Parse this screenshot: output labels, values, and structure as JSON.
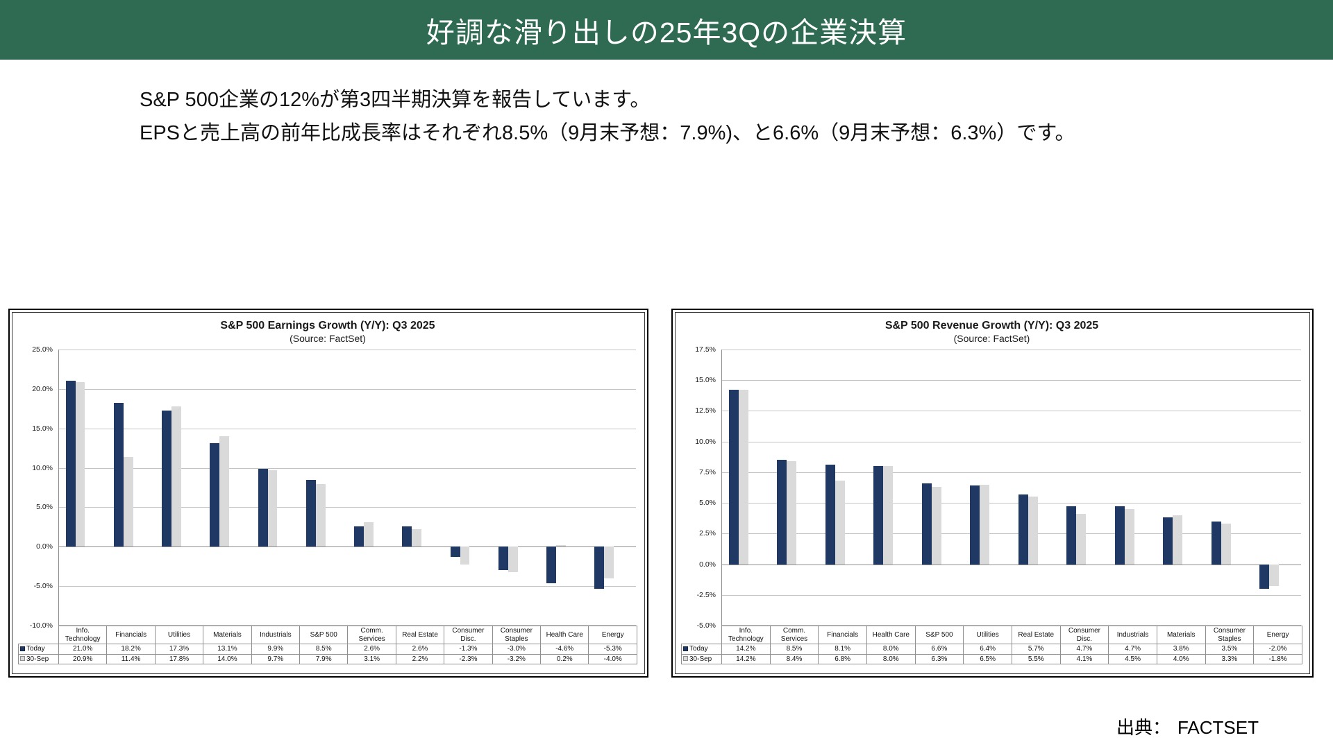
{
  "slide": {
    "title": "好調な滑り出しの25年3Qの企業決算",
    "body_lines": [
      "S&P 500企業の12%が第3四半期決算を報告しています。",
      "EPSと売上高の前年比成長率はそれぞれ8.5%（9月末予想：7.9%)、と6.6%（9月末予想：6.3%）です。"
    ],
    "source_label": "出典：",
    "source_value": "FACTSET"
  },
  "colors": {
    "header_bg": "#2E6B52",
    "today_navy": "#1F3864",
    "prev_gray": "#DADADA",
    "gridline": "#C3C3C3",
    "zero_line": "#8C8C8C",
    "table_border": "#8F8F8F"
  },
  "chart_data": [
    {
      "type": "bar",
      "title": "S&P 500 Earnings Growth (Y/Y): Q3 2025",
      "subtitle": "(Source: FactSet)",
      "categories": [
        "Info. Technology",
        "Financials",
        "Utilities",
        "Materials",
        "Industrials",
        "S&P 500",
        "Comm. Services",
        "Real Estate",
        "Consumer Disc.",
        "Consumer Staples",
        "Health Care",
        "Energy"
      ],
      "series": [
        {
          "name": "Today",
          "color": "#1F3864",
          "values": [
            21.0,
            18.2,
            17.3,
            13.1,
            9.9,
            8.5,
            2.6,
            2.6,
            -1.3,
            -3.0,
            -4.6,
            -5.3
          ]
        },
        {
          "name": "30-Sep",
          "color": "#DADADA",
          "values": [
            20.9,
            11.4,
            17.8,
            14.0,
            9.7,
            7.9,
            3.1,
            2.2,
            -2.3,
            -3.2,
            0.2,
            -4.0
          ]
        }
      ],
      "ylim": [
        -10,
        25
      ],
      "ytick_step": 5,
      "grid": true,
      "legend_position": "table-left"
    },
    {
      "type": "bar",
      "title": "S&P 500 Revenue Growth (Y/Y): Q3 2025",
      "subtitle": "(Source: FactSet)",
      "categories": [
        "Info. Technology",
        "Comm. Services",
        "Financials",
        "Health Care",
        "S&P 500",
        "Utilities",
        "Real Estate",
        "Consumer Disc.",
        "Industrials",
        "Materials",
        "Consumer Staples",
        "Energy"
      ],
      "series": [
        {
          "name": "Today",
          "color": "#1F3864",
          "values": [
            14.2,
            8.5,
            8.1,
            8.0,
            6.6,
            6.4,
            5.7,
            4.7,
            4.7,
            3.8,
            3.5,
            -2.0
          ]
        },
        {
          "name": "30-Sep",
          "color": "#DADADA",
          "values": [
            14.2,
            8.4,
            6.8,
            8.0,
            6.3,
            6.5,
            5.5,
            4.1,
            4.5,
            4.0,
            3.3,
            -1.8
          ]
        }
      ],
      "ylim": [
        -5,
        17.5
      ],
      "ytick_step": 2.5,
      "grid": true,
      "legend_position": "table-left"
    }
  ]
}
